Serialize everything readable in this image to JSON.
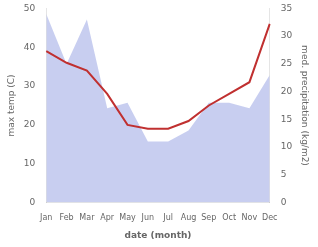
{
  "chart_data": {
    "type": "line",
    "categories": [
      "Jan",
      "Feb",
      "Mar",
      "Apr",
      "May",
      "Jun",
      "Jul",
      "Aug",
      "Sep",
      "Oct",
      "Nov",
      "Dec"
    ],
    "series": [
      {
        "name": "max temp (C)",
        "type": "line",
        "color": "#c03030",
        "axis": "y",
        "values": [
          39,
          36,
          34,
          28,
          20,
          19,
          19,
          21,
          25,
          28,
          31,
          46
        ]
      },
      {
        "name": "med. precipitation (kg/m2)",
        "type": "area",
        "color": "#aab4e8",
        "axis": "y2",
        "values": [
          34,
          25,
          33,
          17,
          18,
          11,
          11,
          13,
          18,
          18,
          17,
          23
        ]
      }
    ],
    "xlabel": "date (month)",
    "ylabel": "max temp (C)",
    "y2label": "med. precipitation (kg/m2)",
    "ylim": [
      0,
      50
    ],
    "yticks": [
      0,
      10,
      20,
      30,
      40,
      50
    ],
    "y2lim": [
      0,
      35
    ],
    "y2ticks": [
      0,
      5,
      10,
      15,
      20,
      25,
      30,
      35
    ],
    "grid": false
  }
}
